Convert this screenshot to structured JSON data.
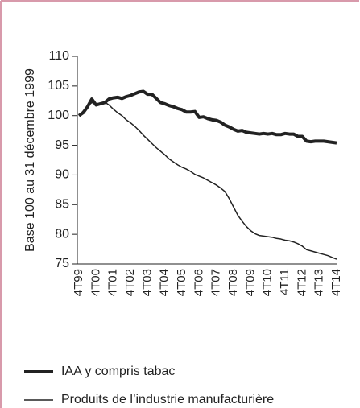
{
  "chart_data": {
    "type": "line",
    "ylabel": "Base 100 au 31 décembre 1999",
    "categories": [
      "4T99",
      null,
      null,
      null,
      "4T00",
      null,
      null,
      null,
      "4T01",
      null,
      null,
      null,
      "4T02",
      null,
      null,
      null,
      "4T03",
      null,
      null,
      null,
      "4T04",
      null,
      null,
      null,
      "4T05",
      null,
      null,
      null,
      "4T06",
      null,
      null,
      null,
      "4T07",
      null,
      null,
      null,
      "4T08",
      null,
      null,
      null,
      "4T09",
      null,
      null,
      null,
      "4T10",
      null,
      null,
      null,
      "4T11",
      null,
      null,
      null,
      "4T12",
      null,
      null,
      null,
      "4T13",
      null,
      null,
      null,
      "4T14"
    ],
    "series": [
      {
        "name": "IAA y compris tabac",
        "color": "#222222",
        "width": 4,
        "values": [
          100,
          100.5,
          101.5,
          102.8,
          101.8,
          102,
          102.2,
          102.8,
          103,
          103.1,
          102.9,
          103.2,
          103.4,
          103.7,
          104,
          104.1,
          103.6,
          103.6,
          102.9,
          102.2,
          102,
          101.7,
          101.5,
          101.2,
          101,
          100.6,
          100.6,
          100.7,
          99.7,
          99.8,
          99.5,
          99.3,
          99.2,
          98.9,
          98.4,
          98.1,
          97.7,
          97.4,
          97.5,
          97.2,
          97.1,
          97,
          96.9,
          97,
          96.9,
          97,
          96.8,
          96.8,
          97,
          96.9,
          96.9,
          96.5,
          96.5,
          95.7,
          95.6,
          95.7,
          95.7,
          95.7,
          95.6,
          95.5,
          95.4
        ]
      },
      {
        "name": "Produits de l’industrie manufacturière",
        "color": "#222222",
        "width": 1.5,
        "values": [
          100,
          100.8,
          101.6,
          102.2,
          102,
          102.1,
          102.3,
          101.8,
          101.1,
          100.5,
          100,
          99.3,
          98.8,
          98.2,
          97.5,
          96.7,
          96,
          95.3,
          94.6,
          94,
          93.4,
          92.7,
          92.2,
          91.7,
          91.3,
          91,
          90.6,
          90.1,
          89.8,
          89.5,
          89.1,
          88.7,
          88.3,
          87.8,
          87.2,
          86,
          84.6,
          83.2,
          82.2,
          81.3,
          80.6,
          80.1,
          79.8,
          79.7,
          79.6,
          79.5,
          79.3,
          79.2,
          79,
          78.9,
          78.7,
          78.4,
          78,
          77.4,
          77.2,
          77,
          76.8,
          76.6,
          76.4,
          76.1,
          75.8
        ]
      }
    ],
    "ylim": [
      75,
      110
    ],
    "yticks": [
      75,
      80,
      85,
      90,
      95,
      100,
      105,
      110
    ],
    "grid": false
  }
}
